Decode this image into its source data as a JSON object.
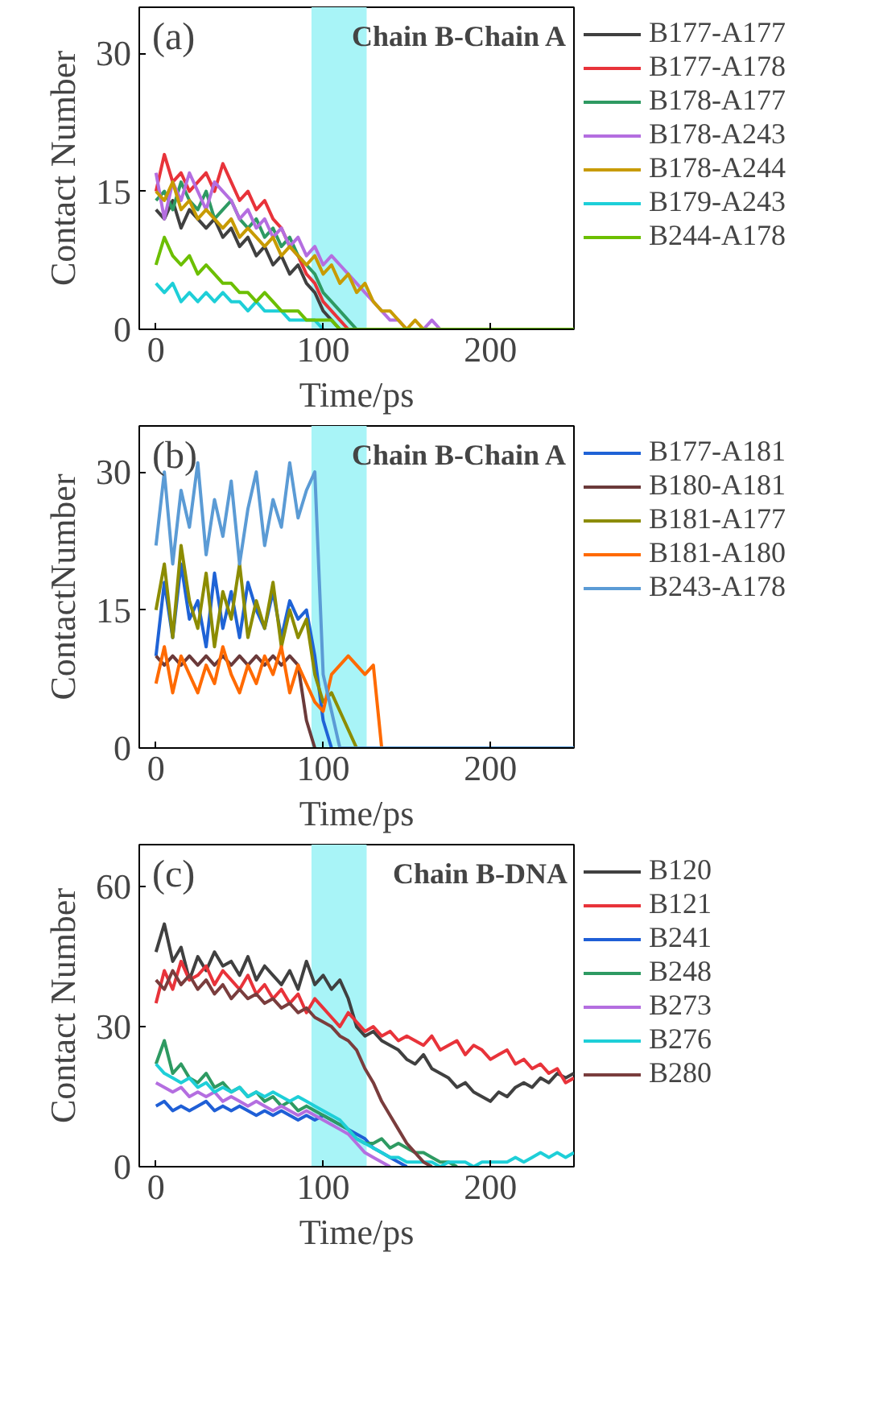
{
  "chart_data": [
    {
      "type": "line",
      "xlabel": "Time/ps",
      "ylabel": "Contact Number",
      "annotations": [
        "(a)",
        "Chain B-Chain A"
      ],
      "xlim": [
        -10,
        250
      ],
      "xticks": [
        0,
        100,
        200
      ],
      "ylim": [
        0,
        35
      ],
      "yticks": [
        0,
        15,
        30
      ],
      "grid": false,
      "legend": "right",
      "bands": [
        {
          "axis": "x",
          "from": 93,
          "to": 126,
          "color": "#a8f4f7"
        }
      ],
      "x": [
        0,
        5,
        10,
        15,
        20,
        25,
        30,
        35,
        40,
        45,
        50,
        55,
        60,
        65,
        70,
        75,
        80,
        85,
        90,
        95,
        100,
        105,
        110,
        115,
        120,
        125,
        130,
        135,
        140,
        145,
        150,
        155,
        160,
        165,
        170,
        175,
        180,
        185,
        190,
        195,
        200,
        205,
        210,
        215,
        220,
        225,
        230,
        235,
        240,
        245,
        250
      ],
      "series": [
        {
          "name": "B177-A177",
          "color": "#404040",
          "values": [
            13,
            12,
            14,
            11,
            13,
            12,
            11,
            12,
            10,
            11,
            9,
            10,
            8,
            9,
            7,
            8,
            6,
            7,
            5,
            4,
            2,
            1,
            0,
            null,
            null,
            null,
            null,
            null,
            null,
            null,
            null,
            null,
            null,
            null,
            null,
            null,
            null,
            null,
            null,
            null,
            null,
            null,
            null,
            null,
            null,
            null,
            null,
            null,
            null,
            null,
            null
          ]
        },
        {
          "name": "B177-A178",
          "color": "#e8333a",
          "values": [
            15,
            19,
            16,
            17,
            15,
            16,
            17,
            15,
            18,
            16,
            14,
            15,
            13,
            14,
            12,
            11,
            9,
            8,
            6,
            5,
            3,
            2,
            1,
            0,
            null,
            null,
            null,
            null,
            null,
            null,
            null,
            null,
            null,
            null,
            null,
            null,
            null,
            null,
            null,
            null,
            null,
            null,
            null,
            null,
            null,
            null,
            null,
            null,
            null,
            null,
            null
          ]
        },
        {
          "name": "B178-A177",
          "color": "#2e9a62",
          "values": [
            14,
            15,
            13,
            16,
            14,
            13,
            15,
            12,
            13,
            14,
            12,
            11,
            12,
            10,
            11,
            9,
            10,
            8,
            7,
            6,
            4,
            3,
            2,
            1,
            0,
            null,
            null,
            null,
            null,
            null,
            null,
            null,
            null,
            null,
            null,
            null,
            null,
            null,
            null,
            null,
            null,
            null,
            null,
            null,
            null,
            null,
            null,
            null,
            null,
            null,
            null
          ]
        },
        {
          "name": "B178-A243",
          "color": "#b46ee0",
          "values": [
            17,
            12,
            16,
            14,
            17,
            15,
            13,
            16,
            15,
            14,
            12,
            13,
            11,
            12,
            10,
            11,
            9,
            10,
            8,
            9,
            7,
            8,
            7,
            6,
            5,
            4,
            3,
            2,
            1,
            1,
            0,
            0,
            0,
            1,
            0,
            null,
            null,
            null,
            null,
            null,
            null,
            null,
            null,
            null,
            null,
            null,
            null,
            null,
            null,
            null,
            null
          ]
        },
        {
          "name": "B178-A244",
          "color": "#c89b00",
          "values": [
            15,
            14,
            16,
            13,
            14,
            12,
            13,
            12,
            11,
            12,
            10,
            11,
            10,
            9,
            10,
            8,
            9,
            8,
            7,
            8,
            6,
            7,
            5,
            6,
            4,
            5,
            3,
            2,
            2,
            1,
            0,
            1,
            0,
            null,
            null,
            null,
            null,
            null,
            null,
            null,
            null,
            null,
            null,
            null,
            null,
            null,
            null,
            null,
            null,
            null,
            null
          ]
        },
        {
          "name": "B179-A243",
          "color": "#1ecfd8",
          "values": [
            5,
            4,
            5,
            3,
            4,
            3,
            4,
            3,
            4,
            3,
            3,
            2,
            3,
            2,
            2,
            2,
            1,
            1,
            1,
            1,
            0,
            null,
            null,
            null,
            null,
            null,
            null,
            null,
            null,
            null,
            null,
            null,
            null,
            null,
            null,
            null,
            null,
            null,
            null,
            null,
            null,
            null,
            null,
            null,
            null,
            null,
            null,
            null,
            null,
            null,
            null
          ]
        },
        {
          "name": "B244-A178",
          "color": "#6cbf00",
          "values": [
            7,
            10,
            8,
            7,
            8,
            6,
            7,
            6,
            5,
            5,
            4,
            4,
            3,
            4,
            3,
            2,
            2,
            2,
            1,
            1,
            1,
            1,
            0,
            0,
            0,
            0,
            0,
            0,
            0,
            0,
            0,
            0,
            0,
            0,
            0,
            0,
            0,
            0,
            0,
            0,
            0,
            0,
            0,
            0,
            0,
            0,
            0,
            0,
            0,
            0,
            0
          ]
        }
      ]
    },
    {
      "type": "line",
      "xlabel": "Time/ps",
      "ylabel": "ContactNumber",
      "annotations": [
        "(b)",
        "Chain B-Chain A"
      ],
      "xlim": [
        -10,
        250
      ],
      "xticks": [
        0,
        100,
        200
      ],
      "ylim": [
        0,
        35
      ],
      "yticks": [
        0,
        15,
        30
      ],
      "grid": false,
      "legend": "right",
      "bands": [
        {
          "axis": "x",
          "from": 93,
          "to": 126,
          "color": "#a8f4f7"
        }
      ],
      "x": [
        0,
        5,
        10,
        15,
        20,
        25,
        30,
        35,
        40,
        45,
        50,
        55,
        60,
        65,
        70,
        75,
        80,
        85,
        90,
        95,
        100,
        105,
        110,
        115,
        120,
        125,
        130,
        135,
        140,
        145,
        150,
        155,
        160,
        165,
        170,
        175,
        180,
        185,
        190,
        195,
        200,
        205,
        210,
        215,
        220,
        225,
        230,
        235,
        240,
        245,
        250
      ],
      "series": [
        {
          "name": "B177-A181",
          "color": "#1f63d6",
          "values": [
            10,
            18,
            12,
            20,
            14,
            16,
            11,
            19,
            13,
            17,
            12,
            18,
            15,
            13,
            17,
            12,
            16,
            14,
            15,
            10,
            3,
            0,
            null,
            null,
            null,
            null,
            null,
            null,
            null,
            null,
            null,
            null,
            null,
            null,
            null,
            null,
            null,
            null,
            null,
            null,
            null,
            null,
            null,
            null,
            null,
            null,
            null,
            null,
            null,
            null,
            null
          ]
        },
        {
          "name": "B180-A181",
          "color": "#6b3a3a",
          "values": [
            10,
            9,
            10,
            9,
            10,
            9,
            10,
            9,
            10,
            9,
            10,
            9,
            10,
            9,
            10,
            9,
            10,
            9,
            3,
            0,
            null,
            null,
            null,
            null,
            null,
            null,
            null,
            null,
            null,
            null,
            null,
            null,
            null,
            null,
            null,
            null,
            null,
            null,
            null,
            null,
            null,
            null,
            null,
            null,
            null,
            null,
            null,
            null,
            null,
            null,
            null
          ]
        },
        {
          "name": "B181-A177",
          "color": "#8c8c00",
          "values": [
            15,
            20,
            12,
            22,
            16,
            13,
            19,
            11,
            17,
            14,
            20,
            12,
            16,
            13,
            18,
            11,
            15,
            12,
            14,
            8,
            5,
            6,
            4,
            2,
            0,
            null,
            null,
            null,
            null,
            null,
            null,
            null,
            null,
            null,
            null,
            null,
            null,
            null,
            null,
            null,
            null,
            null,
            null,
            null,
            null,
            null,
            null,
            null,
            null,
            null,
            null
          ]
        },
        {
          "name": "B181-A180",
          "color": "#ff6a00",
          "values": [
            7,
            11,
            6,
            10,
            8,
            6,
            9,
            7,
            11,
            8,
            6,
            9,
            7,
            10,
            8,
            11,
            6,
            9,
            7,
            5,
            4,
            8,
            9,
            10,
            9,
            8,
            9,
            0,
            null,
            null,
            null,
            null,
            null,
            null,
            null,
            null,
            null,
            null,
            null,
            null,
            null,
            null,
            null,
            null,
            null,
            null,
            null,
            null,
            null,
            null,
            null
          ]
        },
        {
          "name": "B243-A178",
          "color": "#5b9bd5",
          "values": [
            22,
            30,
            20,
            28,
            24,
            31,
            21,
            27,
            23,
            29,
            20,
            26,
            30,
            22,
            27,
            24,
            31,
            25,
            28,
            30,
            8,
            4,
            0,
            0,
            0,
            0,
            0,
            0,
            0,
            0,
            0,
            0,
            0,
            0,
            0,
            0,
            0,
            0,
            0,
            0,
            0,
            0,
            0,
            0,
            0,
            0,
            0,
            0,
            0,
            0,
            0
          ]
        }
      ]
    },
    {
      "type": "line",
      "xlabel": "Time/ps",
      "ylabel": "Contact Number",
      "annotations": [
        "(c)",
        "Chain B-DNA"
      ],
      "xlim": [
        -10,
        250
      ],
      "xticks": [
        0,
        100,
        200
      ],
      "ylim": [
        0,
        69
      ],
      "yticks": [
        0,
        30,
        60
      ],
      "grid": false,
      "legend": "right",
      "bands": [
        {
          "axis": "x",
          "from": 93,
          "to": 126,
          "color": "#a8f4f7"
        }
      ],
      "x": [
        0,
        5,
        10,
        15,
        20,
        25,
        30,
        35,
        40,
        45,
        50,
        55,
        60,
        65,
        70,
        75,
        80,
        85,
        90,
        95,
        100,
        105,
        110,
        115,
        120,
        125,
        130,
        135,
        140,
        145,
        150,
        155,
        160,
        165,
        170,
        175,
        180,
        185,
        190,
        195,
        200,
        205,
        210,
        215,
        220,
        225,
        230,
        235,
        240,
        245,
        250
      ],
      "series": [
        {
          "name": "B120",
          "color": "#404040",
          "values": [
            46,
            52,
            44,
            47,
            40,
            45,
            42,
            46,
            43,
            44,
            41,
            45,
            40,
            43,
            41,
            39,
            42,
            38,
            44,
            39,
            41,
            38,
            40,
            36,
            30,
            28,
            29,
            27,
            26,
            25,
            23,
            22,
            24,
            21,
            20,
            19,
            17,
            18,
            16,
            15,
            14,
            16,
            15,
            17,
            18,
            17,
            19,
            18,
            20,
            19,
            20
          ]
        },
        {
          "name": "B121",
          "color": "#e8333a",
          "values": [
            35,
            42,
            38,
            44,
            40,
            41,
            43,
            39,
            42,
            40,
            38,
            41,
            37,
            39,
            36,
            38,
            35,
            37,
            33,
            36,
            34,
            32,
            30,
            33,
            31,
            29,
            30,
            28,
            29,
            27,
            28,
            27,
            26,
            28,
            25,
            26,
            27,
            24,
            26,
            25,
            23,
            24,
            25,
            22,
            23,
            21,
            22,
            20,
            21,
            18,
            19
          ]
        },
        {
          "name": "B241",
          "color": "#1f5fd6",
          "values": [
            13,
            14,
            12,
            13,
            12,
            13,
            14,
            12,
            13,
            12,
            13,
            12,
            11,
            12,
            11,
            12,
            11,
            10,
            11,
            10,
            11,
            10,
            9,
            8,
            7,
            6,
            4,
            3,
            2,
            1,
            0,
            null,
            null,
            null,
            null,
            null,
            null,
            null,
            null,
            null,
            null,
            null,
            null,
            null,
            null,
            null,
            null,
            null,
            null,
            null,
            null
          ]
        },
        {
          "name": "B248",
          "color": "#2e9a62",
          "values": [
            22,
            27,
            20,
            22,
            19,
            18,
            20,
            17,
            18,
            16,
            17,
            15,
            16,
            14,
            15,
            13,
            14,
            12,
            13,
            12,
            11,
            10,
            9,
            8,
            6,
            5,
            5,
            6,
            4,
            5,
            4,
            3,
            3,
            2,
            1,
            1,
            0,
            null,
            null,
            null,
            null,
            null,
            null,
            null,
            null,
            null,
            null,
            null,
            null,
            null,
            null
          ]
        },
        {
          "name": "B273",
          "color": "#b46ee0",
          "values": [
            18,
            17,
            16,
            17,
            15,
            16,
            15,
            16,
            14,
            15,
            14,
            13,
            14,
            13,
            12,
            13,
            12,
            11,
            12,
            11,
            10,
            9,
            8,
            7,
            5,
            3,
            2,
            1,
            0,
            null,
            null,
            null,
            null,
            null,
            null,
            null,
            null,
            null,
            null,
            null,
            null,
            null,
            null,
            null,
            null,
            null,
            null,
            null,
            null,
            null,
            null
          ]
        },
        {
          "name": "B276",
          "color": "#1ecfd8",
          "values": [
            22,
            20,
            19,
            18,
            19,
            17,
            18,
            16,
            17,
            16,
            17,
            15,
            16,
            15,
            16,
            15,
            14,
            15,
            14,
            13,
            12,
            11,
            10,
            8,
            6,
            5,
            4,
            3,
            2,
            2,
            1,
            1,
            1,
            1,
            0,
            1,
            1,
            1,
            0,
            1,
            1,
            1,
            1,
            2,
            1,
            2,
            3,
            2,
            3,
            2,
            3
          ]
        },
        {
          "name": "B280",
          "color": "#7a3d3d",
          "values": [
            40,
            38,
            42,
            39,
            41,
            38,
            40,
            37,
            39,
            36,
            38,
            36,
            37,
            35,
            36,
            34,
            35,
            33,
            34,
            32,
            31,
            30,
            28,
            27,
            25,
            21,
            18,
            14,
            11,
            8,
            5,
            3,
            1,
            0,
            null,
            null,
            null,
            null,
            null,
            null,
            null,
            null,
            null,
            null,
            null,
            null,
            null,
            null,
            null,
            null,
            null
          ]
        }
      ]
    }
  ]
}
